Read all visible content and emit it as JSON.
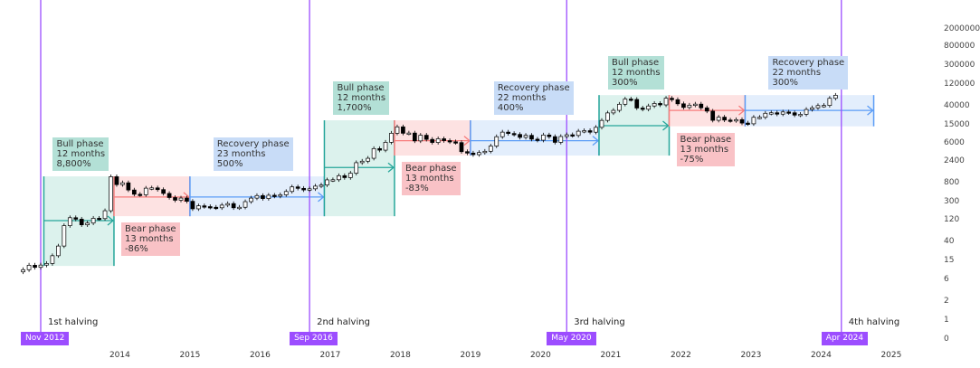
{
  "chart_data": {
    "type": "candlestick",
    "title": "",
    "y_scale": "log",
    "grid": false,
    "y_ticks": [
      "2000000",
      "800000",
      "300000",
      "120000",
      "40000",
      "15000",
      "6000",
      "2400",
      "800",
      "300",
      "120",
      "40",
      "15",
      "6",
      "2",
      "1",
      "0"
    ],
    "x_ticks": [
      "2014",
      "2015",
      "2016",
      "2017",
      "2018",
      "2019",
      "2020",
      "2021",
      "2022",
      "2023",
      "2024",
      "2025"
    ],
    "candles": {
      "start": "2012-08",
      "interval": "monthly",
      "closes": [
        10,
        12.4,
        11.2,
        12.5,
        13.5,
        20,
        33,
        93,
        139,
        129,
        97,
        106,
        135,
        133,
        198,
        1130,
        757,
        830,
        573,
        460,
        448,
        630,
        640,
        585,
        480,
        388,
        338,
        378,
        320,
        218,
        254,
        244,
        236,
        230,
        263,
        284,
        230,
        236,
        314,
        377,
        430,
        368,
        437,
        416,
        448,
        531,
        673,
        624,
        575,
        609,
        700,
        742,
        964,
        970,
        1190,
        1080,
        1350,
        2300,
        2480,
        2875,
        4700,
        4340,
        6470,
        10230,
        14150,
        10220,
        10330,
        6930,
        9240,
        7490,
        6400,
        7730,
        7030,
        6630,
        6370,
        4020,
        3740,
        3460,
        3850,
        4100,
        5350,
        8570,
        10820,
        10090,
        9630,
        8290,
        9200,
        7570,
        7190,
        9350,
        8600,
        6440,
        8660,
        9460,
        9140,
        11350,
        11650,
        10780,
        13800,
        19700,
        28990,
        33110,
        45240,
        58920,
        57750,
        37330,
        35040,
        41460,
        47100,
        43790,
        61320,
        57000,
        46300,
        38480,
        43190,
        45540,
        37710,
        31790,
        19780,
        23300,
        20050,
        19430,
        20490,
        17170,
        16540,
        23140,
        23150,
        28480,
        29230,
        27220,
        30470,
        29230,
        25930,
        26970,
        34660,
        37720,
        42280,
        42580,
        61130,
        71290
      ]
    },
    "halvings": [
      {
        "label": "1st halving",
        "date": "Nov 2012"
      },
      {
        "label": "2nd halving",
        "date": "Sep 2016"
      },
      {
        "label": "3rd halving",
        "date": "May 2020"
      },
      {
        "label": "4th halving",
        "date": "Apr 2024"
      }
    ],
    "phases": [
      {
        "type": "bull",
        "title": "Bull phase",
        "duration": "12 months",
        "change": "8,800%",
        "start": "2012-12",
        "end": "2013-12",
        "low": 12,
        "high": 1150,
        "arrow_level": 120
      },
      {
        "type": "bear",
        "title": "Bear phase",
        "duration": "13 months",
        "change": "-86%",
        "start": "2013-12",
        "end": "2015-01",
        "low": 150,
        "high": 1150,
        "arrow_level": 400
      },
      {
        "type": "rec",
        "title": "Recovery phase",
        "duration": "23 months",
        "change": "500%",
        "start": "2015-01",
        "end": "2016-12",
        "low": 150,
        "high": 1150,
        "arrow_level": 400
      },
      {
        "type": "bull",
        "title": "Bull phase",
        "duration": "12 months",
        "change": "1,700%",
        "start": "2016-12",
        "end": "2017-12",
        "low": 150,
        "high": 19800,
        "arrow_level": 1800
      },
      {
        "type": "bear",
        "title": "Bear phase",
        "duration": "13 months",
        "change": "-83%",
        "start": "2017-12",
        "end": "2019-01",
        "low": 3300,
        "high": 19800,
        "arrow_level": 7000
      },
      {
        "type": "rec",
        "title": "Recovery phase",
        "duration": "22 months",
        "change": "400%",
        "start": "2019-01",
        "end": "2020-11",
        "low": 3300,
        "high": 19800,
        "arrow_level": 7000
      },
      {
        "type": "bull",
        "title": "Bull phase",
        "duration": "12 months",
        "change": "300%",
        "start": "2020-11",
        "end": "2021-11",
        "low": 3300,
        "high": 72000,
        "arrow_level": 15000
      },
      {
        "type": "bear",
        "title": "Bear phase",
        "duration": "13 months",
        "change": "-75%",
        "start": "2021-11",
        "end": "2022-12",
        "low": 14500,
        "high": 72000,
        "arrow_level": 33000
      },
      {
        "type": "rec",
        "title": "Recovery phase",
        "duration": "22 months",
        "change": "300%",
        "start": "2022-12",
        "end": "2024-10",
        "low": 14500,
        "high": 72000,
        "arrow_level": 33000
      }
    ],
    "colors": {
      "halving": "#9c4dff",
      "bull": "#26a69a",
      "bear": "#f77c7c",
      "recovery": "#5b9cf6",
      "up_candle": "#ffffff",
      "down_candle": "#000000"
    }
  }
}
